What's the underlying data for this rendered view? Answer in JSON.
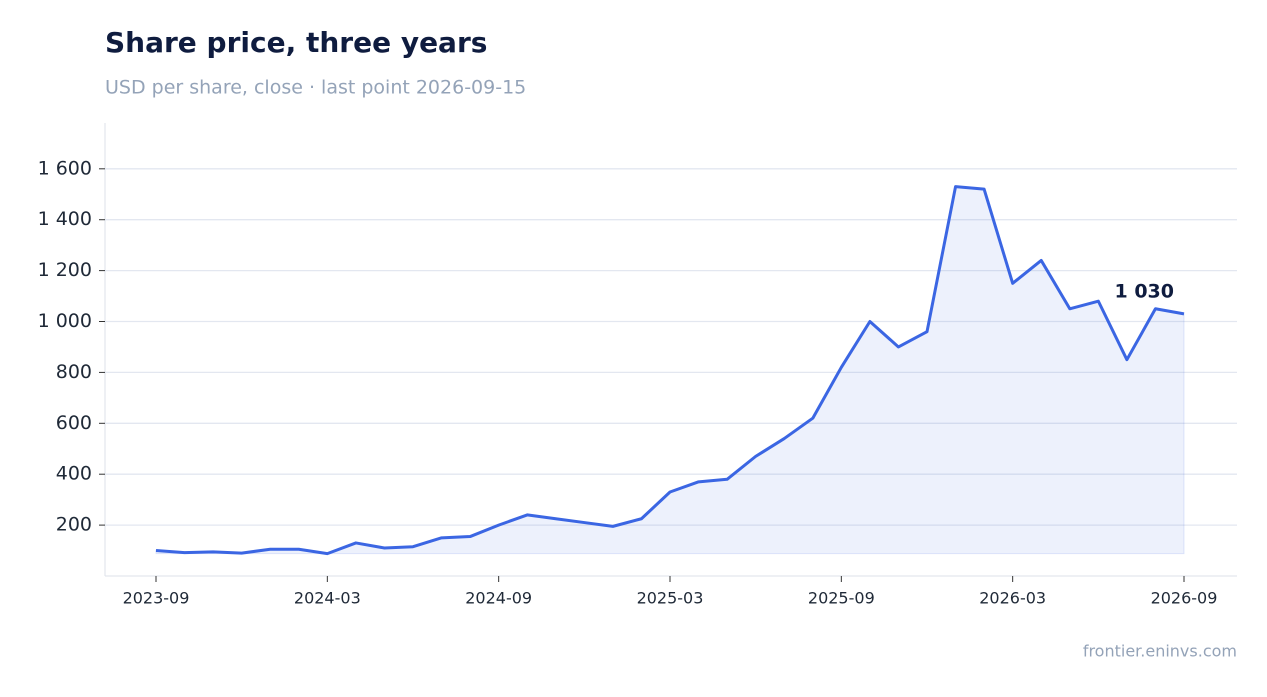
{
  "chart_data": {
    "type": "line",
    "title": "Share price, three years",
    "subtitle": "USD per share, close · last point 2026-09-15",
    "source": "frontier.eninvs.com",
    "x": [
      "2023-09",
      "2023-10",
      "2023-11",
      "2023-12",
      "2024-01",
      "2024-02",
      "2024-03",
      "2024-04",
      "2024-05",
      "2024-06",
      "2024-07",
      "2024-08",
      "2024-09",
      "2024-10",
      "2024-11",
      "2024-12",
      "2025-01",
      "2025-02",
      "2025-03",
      "2025-04",
      "2025-05",
      "2025-06",
      "2025-07",
      "2025-08",
      "2025-09",
      "2025-10",
      "2025-11",
      "2025-12",
      "2026-01",
      "2026-02",
      "2026-03",
      "2026-04",
      "2026-05",
      "2026-06",
      "2026-07",
      "2026-08",
      "2026-09"
    ],
    "series": [
      {
        "name": "Close",
        "color": "#3b66e3",
        "values": [
          100,
          92,
          95,
          90,
          105,
          105,
          88,
          130,
          110,
          115,
          150,
          155,
          200,
          240,
          225,
          210,
          195,
          225,
          330,
          370,
          380,
          470,
          540,
          620,
          820,
          1000,
          900,
          960,
          1530,
          1520,
          1150,
          1240,
          1050,
          1080,
          850,
          1050,
          1030
        ],
        "value_labels": [
          null,
          null,
          null,
          null,
          null,
          null,
          null,
          null,
          null,
          null,
          null,
          null,
          null,
          null,
          null,
          null,
          null,
          null,
          null,
          null,
          null,
          null,
          null,
          null,
          null,
          null,
          null,
          null,
          null,
          null,
          null,
          null,
          null,
          null,
          null,
          null,
          "1 030"
        ]
      }
    ],
    "xticks": [
      "2023-09",
      "2024-03",
      "2024-09",
      "2025-03",
      "2025-09",
      "2026-03",
      "2026-09"
    ],
    "ylim": [
      0,
      1780
    ],
    "yticks": [
      200,
      400,
      600,
      800,
      {
        "value": 1000,
        "label": "1 000"
      },
      {
        "value": 1200,
        "label": "1 200"
      },
      {
        "value": 1400,
        "label": "1 400"
      },
      {
        "value": 1600,
        "label": "1 600"
      }
    ],
    "grid": true
  }
}
